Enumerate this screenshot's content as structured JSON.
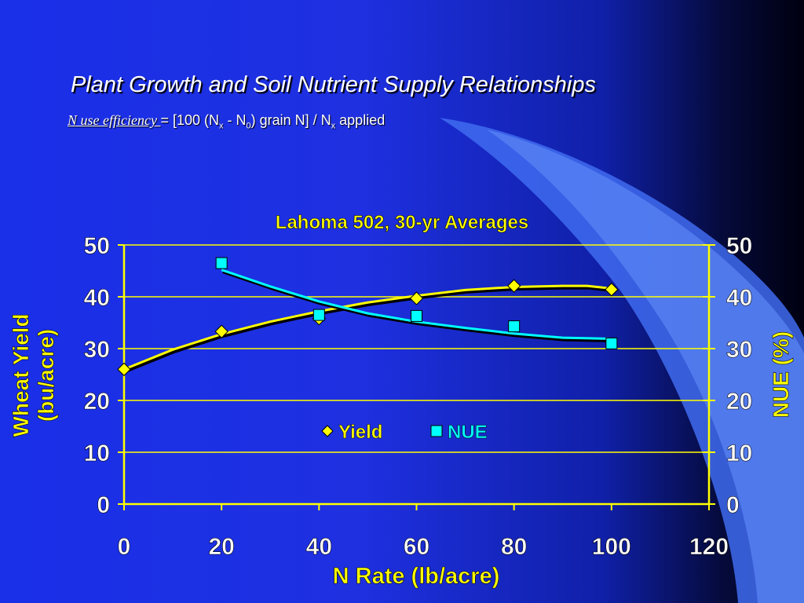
{
  "slide": {
    "title": "Plant Growth and Soil Nutrient Supply Relationships",
    "formula": {
      "term": "N use efficiency ",
      "eq": " = [100 (N",
      "sub1": "x",
      "mid": " - N",
      "sub2": "0",
      "mid2": ") grain N] / N",
      "sub3": "x",
      "tail": " applied"
    }
  },
  "colors": {
    "yield": "#ffff00",
    "nue": "#00ffff",
    "axis": "#ffff00",
    "text": "#ffffff"
  },
  "chart_data": {
    "type": "line",
    "title": "Lahoma 502, 30-yr Averages",
    "xlabel": "N Rate (lb/acre)",
    "ylabel": [
      "Wheat Yield",
      "(bu/acre)"
    ],
    "y2label": "NUE (%)",
    "xlim": [
      0,
      120
    ],
    "ylim": [
      0,
      50
    ],
    "y2lim": [
      0,
      50
    ],
    "xticks": [
      0,
      20,
      40,
      60,
      80,
      100,
      120
    ],
    "yticks": [
      0,
      10,
      20,
      30,
      40,
      50
    ],
    "y2ticks": [
      0,
      10,
      20,
      30,
      40,
      50
    ],
    "grid": true,
    "legend_position": "center",
    "series": [
      {
        "name": "Yield",
        "axis": "left",
        "marker": "diamond",
        "x": [
          0,
          20,
          40,
          60,
          80,
          100
        ],
        "y": [
          26,
          33.3,
          35.8,
          39.7,
          42.1,
          41.4
        ],
        "trend_x": [
          0,
          10,
          20,
          30,
          40,
          50,
          60,
          70,
          80,
          90,
          95,
          100
        ],
        "trend_y": [
          26,
          29.8,
          32.8,
          35.2,
          37.2,
          38.9,
          40.2,
          41.3,
          41.9,
          42.1,
          42.1,
          41.6
        ]
      },
      {
        "name": "NUE",
        "axis": "right",
        "marker": "square",
        "x": [
          20,
          40,
          60,
          80,
          100
        ],
        "y": [
          46.5,
          36.5,
          36.3,
          34.3,
          31
        ],
        "trend_x": [
          20,
          30,
          40,
          50,
          60,
          70,
          80,
          90,
          100
        ],
        "trend_y": [
          45.2,
          42,
          39.1,
          36.8,
          35.2,
          34,
          32.9,
          32.1,
          31.9
        ]
      }
    ]
  }
}
